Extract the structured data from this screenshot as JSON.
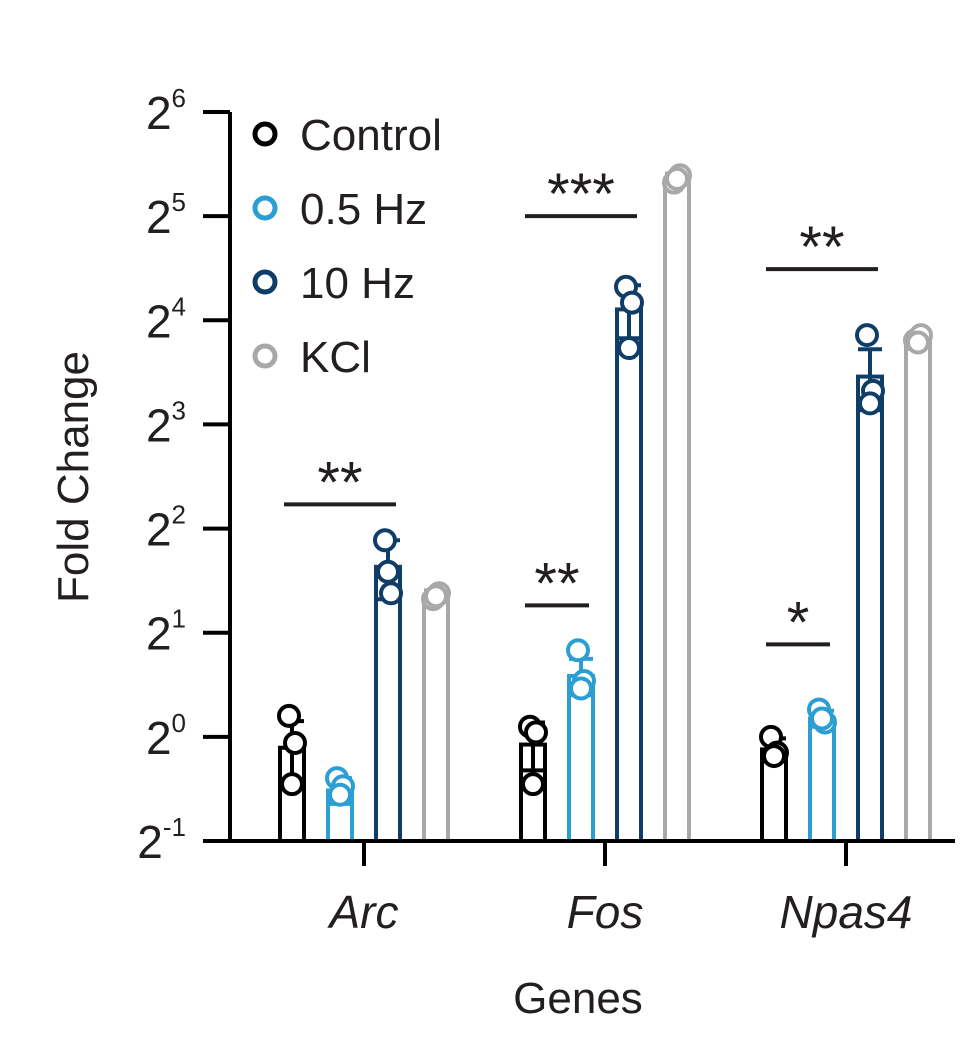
{
  "chart_data": {
    "type": "bar",
    "ylabel": "Fold Change",
    "xlabel": "Genes",
    "y_scale": "log2",
    "ylim": [
      -1,
      6
    ],
    "y_ticks": [
      {
        "base": "2",
        "exp": "6"
      },
      {
        "base": "2",
        "exp": "5"
      },
      {
        "base": "2",
        "exp": "4"
      },
      {
        "base": "2",
        "exp": "3"
      },
      {
        "base": "2",
        "exp": "2"
      },
      {
        "base": "2",
        "exp": "1"
      },
      {
        "base": "2",
        "exp": "0"
      },
      {
        "base": "2",
        "exp": "-1"
      }
    ],
    "categories": [
      "Arc",
      "Fos",
      "Npas4"
    ],
    "series": [
      {
        "name": "Control",
        "color": "#000000",
        "values": [
          0.93,
          0.95,
          0.92
        ],
        "error": [
          0.18,
          0.15,
          0.07
        ],
        "points": [
          [
            1.15,
            0.96,
            0.73
          ],
          [
            1.07,
            1.03,
            0.73
          ],
          [
            1.0,
            0.9,
            0.88
          ]
        ]
      },
      {
        "name": "0.5 Hz",
        "color": "#2b9fd3",
        "values": [
          0.7,
          1.5,
          1.13
        ],
        "error": [
          0.06,
          0.18,
          0.06
        ],
        "points": [
          [
            0.76,
            0.72,
            0.68
          ],
          [
            1.78,
            1.45,
            1.38
          ],
          [
            1.2,
            1.1,
            1.13
          ]
        ]
      },
      {
        "name": "10 Hz",
        "color": "#0f3d67",
        "values": [
          3.1,
          17.2,
          11.0
        ],
        "error": [
          0.6,
          3.0,
          2.2
        ],
        "points": [
          [
            3.7,
            2.6,
            3.0
          ],
          [
            20.0,
            18.0,
            13.3
          ],
          [
            14.5,
            10.0,
            9.2
          ]
        ]
      },
      {
        "name": "KCl",
        "color": "#a7a8aa",
        "values": [
          2.55,
          41.0,
          14.0
        ],
        "error": [
          0.1,
          1.5,
          0.5
        ],
        "points": [
          [
            2.5,
            2.6,
            2.55
          ],
          [
            40.0,
            42.0,
            41.0
          ],
          [
            14.0,
            14.5,
            13.8
          ]
        ]
      }
    ],
    "significance": [
      {
        "label": "**",
        "category": "Arc",
        "from": "Control",
        "to": "10 Hz",
        "y": 4.7
      },
      {
        "label": "**",
        "category": "Fos",
        "from": "Control",
        "to": "0.5 Hz",
        "y": 2.4
      },
      {
        "label": "***",
        "category": "Fos",
        "from": "Control",
        "to": "10 Hz",
        "y": 32
      },
      {
        "label": "*",
        "category": "Npas4",
        "from": "Control",
        "to": "0.5 Hz",
        "y": 1.85
      },
      {
        "label": "**",
        "category": "Npas4",
        "from": "Control",
        "to": "10 Hz",
        "y": 22.5
      }
    ],
    "legend": {
      "position": "top-left"
    }
  }
}
